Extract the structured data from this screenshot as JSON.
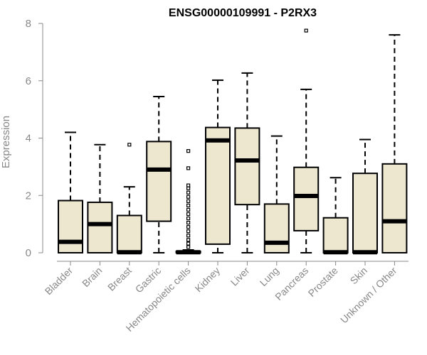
{
  "chart_data": {
    "type": "box",
    "title": "ENSG00000109991 - P2RX3",
    "ylabel": "Expression",
    "xlabel": "",
    "ylim": [
      0,
      8
    ],
    "yticks": [
      0,
      2,
      4,
      6,
      8
    ],
    "grid": false,
    "box_fill": "#EDE7CF",
    "categories": [
      "Bladder",
      "Brain",
      "Breast",
      "Gastric",
      "Hematopoietic cells",
      "Kidney",
      "Liver",
      "Lung",
      "Pancreas",
      "Prostate",
      "Skin",
      "Unknown / Other"
    ],
    "boxes": [
      {
        "q1": 0,
        "median": 0.38,
        "q3": 1.82,
        "whisker_low": 0,
        "whisker_high": 4.2,
        "outliers": []
      },
      {
        "q1": 0,
        "median": 1.0,
        "q3": 1.76,
        "whisker_low": 0,
        "whisker_high": 3.77,
        "outliers": []
      },
      {
        "q1": 0,
        "median": 0.02,
        "q3": 1.3,
        "whisker_low": 0,
        "whisker_high": 2.3,
        "outliers": [
          3.77
        ]
      },
      {
        "q1": 1.1,
        "median": 2.9,
        "q3": 3.88,
        "whisker_low": 0,
        "whisker_high": 5.45,
        "outliers": []
      },
      {
        "q1": 0,
        "median": 0.02,
        "q3": 0.05,
        "whisker_low": 0,
        "whisker_high": 0.1,
        "outliers": [
          0.2,
          0.32,
          0.45,
          0.6,
          0.75,
          0.9,
          1.05,
          1.2,
          1.35,
          1.5,
          1.65,
          1.8,
          1.95,
          2.1,
          2.25,
          2.35,
          2.95,
          3.55
        ]
      },
      {
        "q1": 0.3,
        "median": 3.92,
        "q3": 4.37,
        "whisker_low": 0,
        "whisker_high": 6.02,
        "outliers": []
      },
      {
        "q1": 1.68,
        "median": 3.22,
        "q3": 4.35,
        "whisker_low": 0,
        "whisker_high": 6.27,
        "outliers": []
      },
      {
        "q1": 0,
        "median": 0.35,
        "q3": 1.7,
        "whisker_low": 0,
        "whisker_high": 4.07,
        "outliers": []
      },
      {
        "q1": 0.77,
        "median": 1.98,
        "q3": 2.98,
        "whisker_low": 0,
        "whisker_high": 5.7,
        "outliers": [
          7.75
        ]
      },
      {
        "q1": 0,
        "median": 0.02,
        "q3": 1.22,
        "whisker_low": 0,
        "whisker_high": 2.62,
        "outliers": []
      },
      {
        "q1": 0,
        "median": 0.02,
        "q3": 2.77,
        "whisker_low": 0,
        "whisker_high": 3.95,
        "outliers": []
      },
      {
        "q1": 0,
        "median": 1.1,
        "q3": 3.1,
        "whisker_low": 0,
        "whisker_high": 7.6,
        "outliers": []
      }
    ]
  }
}
